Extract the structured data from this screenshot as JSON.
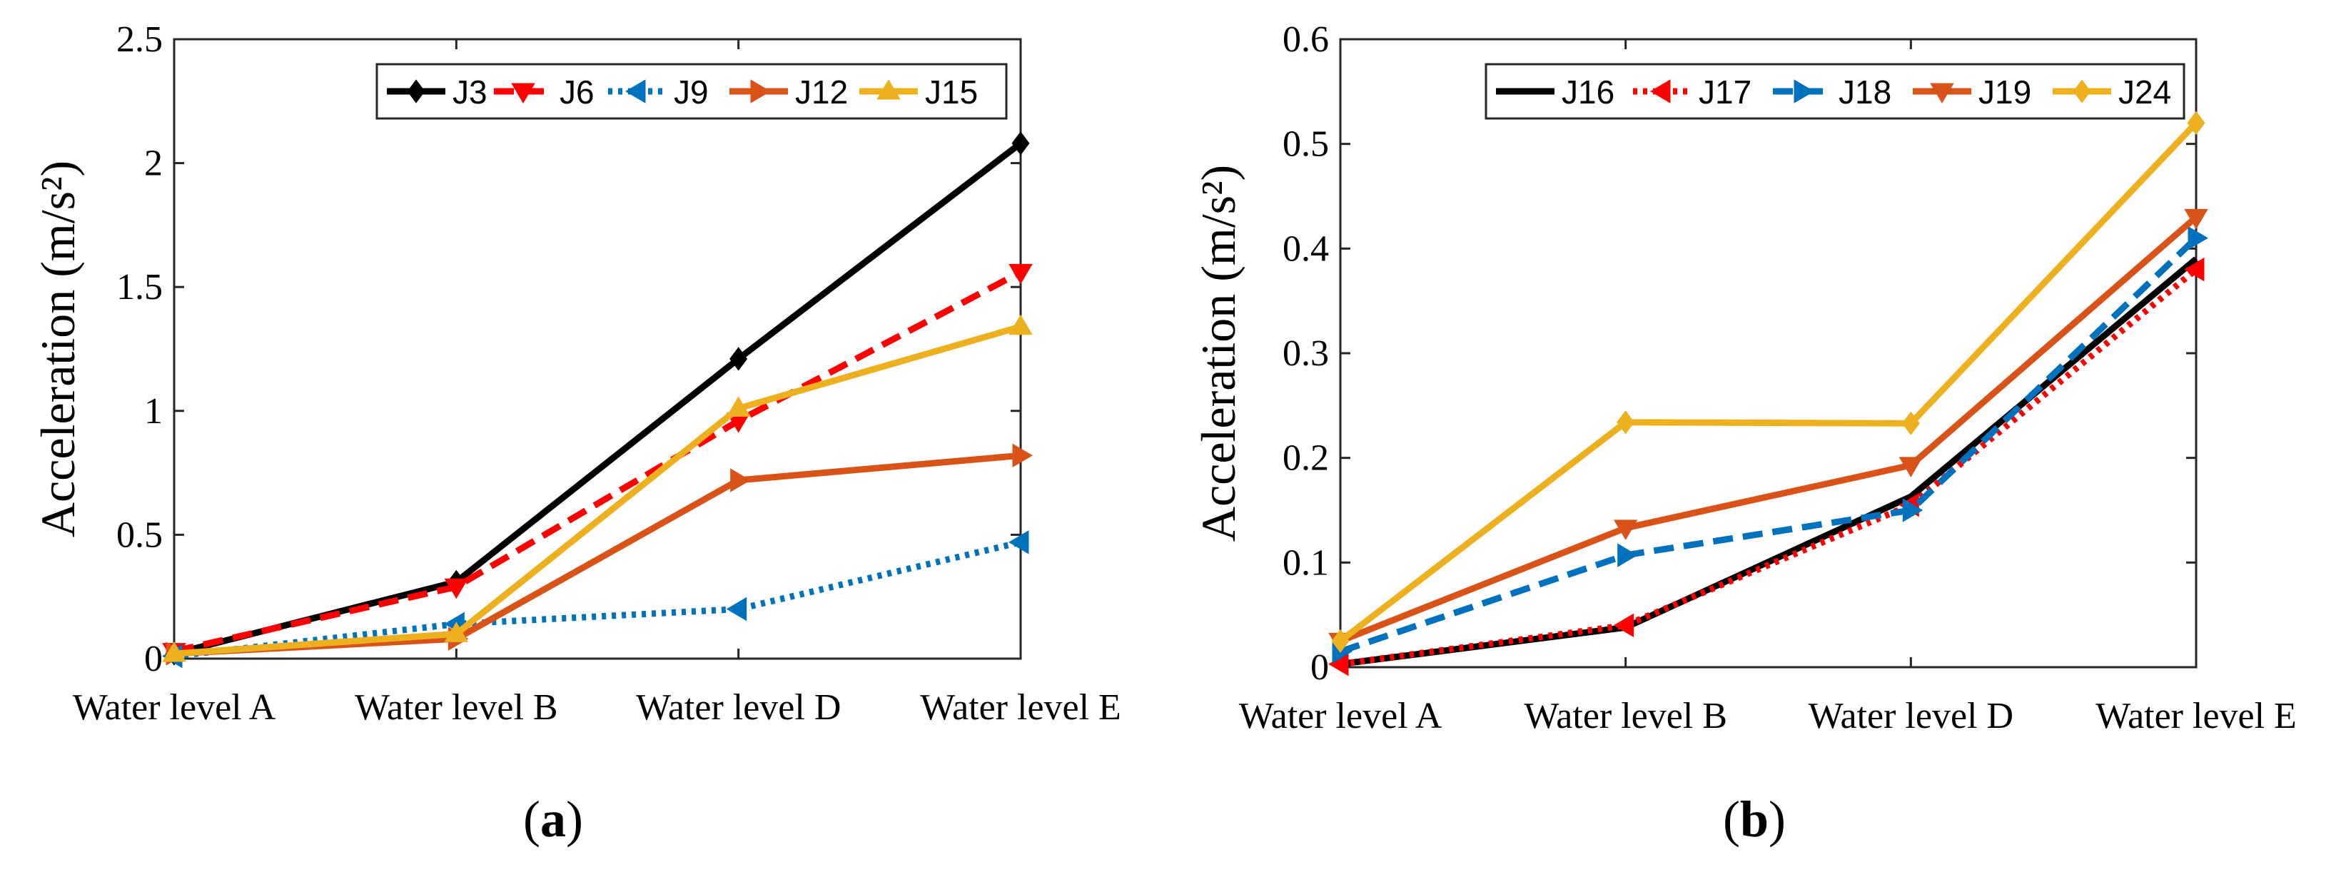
{
  "chart_data": [
    {
      "id": "a",
      "type": "line",
      "caption": "(a)",
      "caption_letter": "a",
      "title": "",
      "xlabel": "",
      "ylabel": "Acceleration (m/s²)",
      "categories": [
        "Water level A",
        "Water level B",
        "Water level D",
        "Water level E"
      ],
      "ylim": [
        0,
        2.5
      ],
      "yticks": [
        0,
        0.5,
        1,
        1.5,
        2,
        2.5
      ],
      "ytick_labels": [
        "0",
        "0.5",
        "1",
        "1.5",
        "2",
        "2.5"
      ],
      "grid": false,
      "legend_position": "top-right",
      "series": [
        {
          "name": "J3",
          "color": "#000000",
          "dash": "solid",
          "marker": "diamond",
          "values": [
            0.02,
            0.31,
            1.21,
            2.08
          ]
        },
        {
          "name": "J6",
          "color": "#ff0000",
          "dash": "dashed",
          "marker": "triangle-down",
          "values": [
            0.03,
            0.29,
            0.96,
            1.56
          ]
        },
        {
          "name": "J9",
          "color": "#0072bd",
          "dash": "dotted",
          "marker": "triangle-left",
          "values": [
            0.01,
            0.14,
            0.2,
            0.47
          ]
        },
        {
          "name": "J12",
          "color": "#d95319",
          "dash": "solid",
          "marker": "triangle-right",
          "values": [
            0.02,
            0.08,
            0.72,
            0.82
          ]
        },
        {
          "name": "J15",
          "color": "#edb120",
          "dash": "solid",
          "marker": "triangle-up",
          "values": [
            0.02,
            0.1,
            1.01,
            1.34
          ]
        }
      ]
    },
    {
      "id": "b",
      "type": "line",
      "caption": "(b)",
      "caption_letter": "b",
      "title": "",
      "xlabel": "",
      "ylabel": "Acceleration (m/s²)",
      "categories": [
        "Water level A",
        "Water level B",
        "Water level D",
        "Water level E"
      ],
      "ylim": [
        0,
        0.6
      ],
      "yticks": [
        0,
        0.1,
        0.2,
        0.3,
        0.4,
        0.5,
        0.6
      ],
      "ytick_labels": [
        "0",
        "0.1",
        "0.2",
        "0.3",
        "0.4",
        "0.5",
        "0.6"
      ],
      "grid": false,
      "legend_position": "top-right",
      "series": [
        {
          "name": "J16",
          "color": "#000000",
          "dash": "solid",
          "marker": "none",
          "values": [
            0.003,
            0.038,
            0.163,
            0.39
          ]
        },
        {
          "name": "J17",
          "color": "#ff0000",
          "dash": "dotted",
          "marker": "triangle-left",
          "values": [
            0.003,
            0.04,
            0.155,
            0.38
          ]
        },
        {
          "name": "J18",
          "color": "#0072bd",
          "dash": "dashed",
          "marker": "triangle-right",
          "values": [
            0.015,
            0.107,
            0.15,
            0.41
          ]
        },
        {
          "name": "J19",
          "color": "#d95319",
          "dash": "solid",
          "marker": "triangle-down",
          "values": [
            0.025,
            0.133,
            0.193,
            0.43
          ]
        },
        {
          "name": "J24",
          "color": "#edb120",
          "dash": "solid",
          "marker": "diamond",
          "values": [
            0.025,
            0.234,
            0.233,
            0.52
          ]
        }
      ]
    }
  ]
}
